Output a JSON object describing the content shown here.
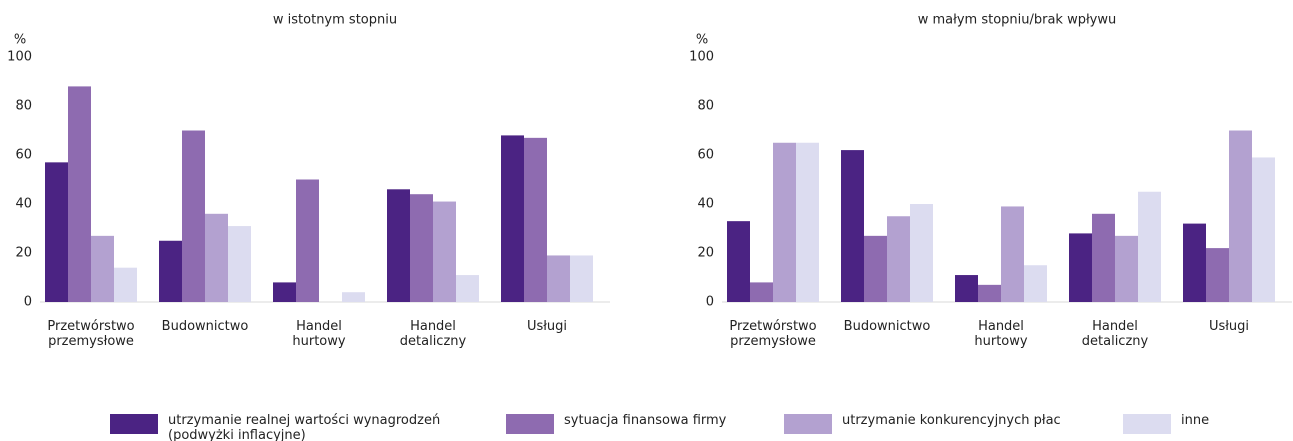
{
  "chart_data": [
    {
      "type": "bar",
      "title": "w istotnym stopniu",
      "y_label": "%",
      "categories": [
        "Przetwórstwo\nprzemysłowe",
        "Budownictwo",
        "Handel\nhurtowy",
        "Handel\ndetaliczny",
        "Usługi"
      ],
      "series": [
        {
          "name": "utrzymanie realnej wartości wynagrodzeń\n(podwyżki inflacyjne)",
          "color": "#4b2383",
          "values": [
            57,
            25,
            8,
            46,
            68
          ]
        },
        {
          "name": "sytuacja finansowa firmy",
          "color": "#8e6bb0",
          "values": [
            88,
            70,
            50,
            44,
            67
          ]
        },
        {
          "name": "utrzymanie konkurencyjnych płac",
          "color": "#b3a1d0",
          "values": [
            27,
            36,
            null,
            41,
            19
          ]
        },
        {
          "name": "inne",
          "color": "#dcdcf0",
          "values": [
            14,
            31,
            4,
            11,
            19
          ]
        }
      ],
      "ylim": [
        0,
        100
      ],
      "yticks": [
        0,
        20,
        40,
        60,
        80,
        100
      ],
      "grid": false
    },
    {
      "type": "bar",
      "title": "w małym stopniu/brak wpływu",
      "y_label": "%",
      "categories": [
        "Przetwórstwo\nprzemysłowe",
        "Budownictwo",
        "Handel\nhurtowy",
        "Handel\ndetaliczny",
        "Usługi"
      ],
      "series": [
        {
          "color": "#4b2383",
          "values": [
            33,
            62,
            11,
            28,
            32
          ]
        },
        {
          "color": "#8e6bb0",
          "values": [
            8,
            27,
            7,
            36,
            22
          ]
        },
        {
          "color": "#b3a1d0",
          "values": [
            65,
            35,
            39,
            27,
            70
          ]
        },
        {
          "color": "#dcdcf0",
          "values": [
            65,
            40,
            15,
            45,
            59
          ]
        }
      ],
      "ylim": [
        0,
        100
      ],
      "yticks": [
        0,
        20,
        40,
        60,
        80,
        100
      ],
      "grid": false
    }
  ]
}
